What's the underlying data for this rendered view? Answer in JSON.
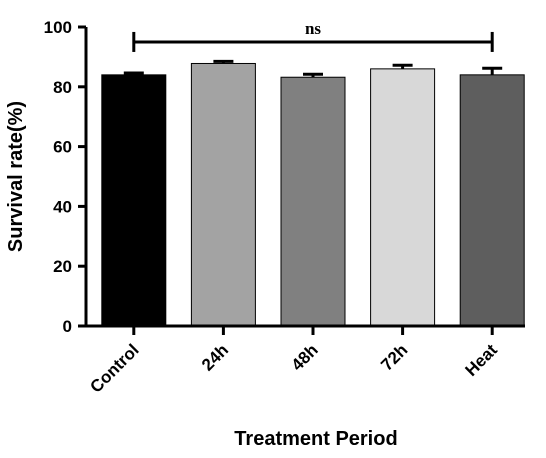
{
  "chart_data": {
    "type": "bar",
    "title": "",
    "xlabel": "Treatment Period",
    "ylabel": "Survival rate(%)",
    "ylim": [
      0,
      100
    ],
    "yticks": [
      0,
      20,
      40,
      60,
      80,
      100
    ],
    "grid": false,
    "categories": [
      "Control",
      "24h",
      "48h",
      "72h",
      "Heat"
    ],
    "values": [
      84.0,
      87.8,
      83.2,
      86.0,
      84.0
    ],
    "errors": [
      0.6,
      0.7,
      1.0,
      1.2,
      2.2
    ],
    "bar_colors": [
      "#000000",
      "#a3a3a3",
      "#808080",
      "#d8d8d8",
      "#5e5e5e"
    ],
    "annotation": {
      "text": "ns",
      "from_category": "Control",
      "to_category": "Heat",
      "level": 95
    }
  }
}
